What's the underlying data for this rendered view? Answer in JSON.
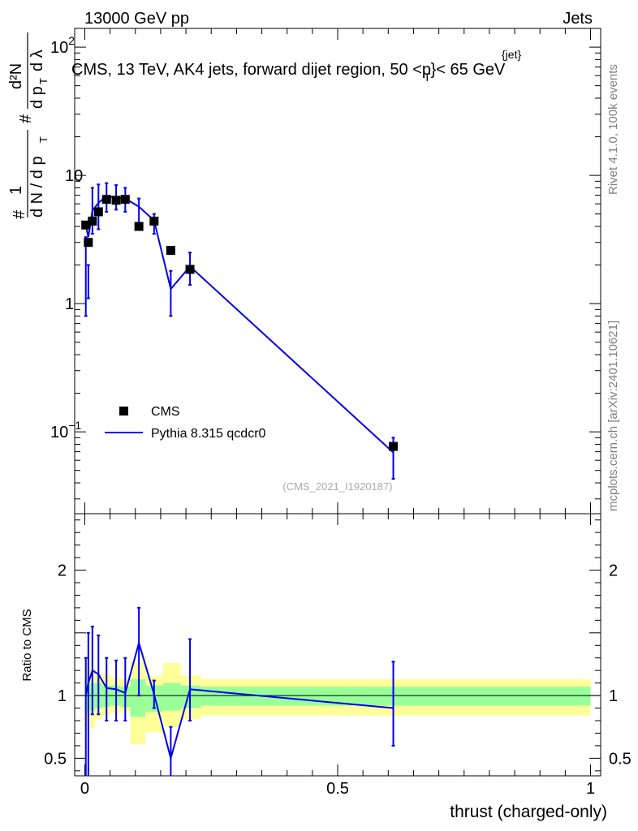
{
  "header": {
    "left": "13000 GeV pp",
    "right": "Jets",
    "title": "CMS, 13 TeV, AK4 jets, forward dijet region, 50 <p",
    "title_sup": "{jet}",
    "title_sub": "T",
    "title_end": "}< 65 GeV"
  },
  "side": {
    "rivet": "Rivet 4.1.0,  100k events",
    "mcplots": "mcplots.cern.ch [arXiv:2401.10621]"
  },
  "watermark": "(CMS_2021_I1920187)",
  "legend": {
    "data": "CMS",
    "mc": "Pythia 8.315 qcdcr0"
  },
  "colors": {
    "data": "#000000",
    "mc": "#0000ee",
    "band_inner": "#99ff99",
    "band_outer": "#ffff99"
  },
  "axes": {
    "ylabel_main": "1/(dN/dpT) d²N/(dpT dλ)",
    "ylabel_ratio": "Ratio to CMS",
    "xlabel": "thrust (charged-only)",
    "main_ticks": [
      {
        "v": 0.1,
        "label": "10",
        "exp": "−1"
      },
      {
        "v": 1,
        "label": "1",
        "exp": ""
      },
      {
        "v": 10,
        "label": "10",
        "exp": ""
      },
      {
        "v": 100,
        "label": "10",
        "exp": "2"
      }
    ],
    "ratio_ticks": [
      {
        "v": 0.5,
        "label": "0.5"
      },
      {
        "v": 1,
        "label": "1"
      },
      {
        "v": 2,
        "label": "2"
      }
    ],
    "x_ticks": [
      {
        "v": 0,
        "label": "0"
      },
      {
        "v": 0.5,
        "label": "0.5"
      },
      {
        "v": 1,
        "label": "1"
      }
    ]
  },
  "chart_data": {
    "type": "scatter",
    "title": "CMS, 13 TeV, AK4 jets, forward dijet region, 50 < pT < 65 GeV",
    "xlabel": "thrust (charged-only)",
    "ylabel": "1/(dN/dpT) d²N/(dpT dλ)",
    "yscale": "log",
    "xlim": [
      -0.02,
      1.02
    ],
    "ylim": [
      0.023,
      140
    ],
    "ratio_ylim": [
      0.36,
      2.45
    ],
    "series": [
      {
        "name": "CMS",
        "x": [
          0.002,
          0.007,
          0.015,
          0.027,
          0.043,
          0.062,
          0.08,
          0.107,
          0.137,
          0.17,
          0.208,
          0.61
        ],
        "y": [
          4.1,
          3.0,
          4.4,
          5.2,
          6.5,
          6.4,
          6.5,
          4.0,
          4.4,
          2.6,
          1.85,
          0.077
        ],
        "bins": [
          [
            0.0,
            0.004
          ],
          [
            0.004,
            0.01
          ],
          [
            0.01,
            0.02
          ],
          [
            0.02,
            0.035
          ],
          [
            0.035,
            0.05
          ],
          [
            0.05,
            0.07
          ],
          [
            0.07,
            0.09
          ],
          [
            0.09,
            0.12
          ],
          [
            0.12,
            0.155
          ],
          [
            0.155,
            0.19
          ],
          [
            0.19,
            0.23
          ],
          [
            0.23,
            1.0
          ]
        ],
        "band_outer": [
          [
            0.81,
            1.32
          ],
          [
            0.77,
            1.26
          ],
          [
            0.74,
            1.21
          ],
          [
            0.81,
            1.18
          ],
          [
            0.84,
            1.17
          ],
          [
            0.86,
            1.15
          ],
          [
            0.87,
            1.13
          ],
          [
            0.61,
            1.26
          ],
          [
            0.71,
            1.16
          ],
          [
            0.75,
            1.26
          ],
          [
            0.81,
            1.16
          ],
          [
            0.84,
            1.13
          ]
        ],
        "band_inner": [
          [
            0.89,
            1.14
          ],
          [
            0.86,
            1.12
          ],
          [
            0.88,
            1.1
          ],
          [
            0.9,
            1.1
          ],
          [
            0.91,
            1.08
          ],
          [
            0.92,
            1.08
          ],
          [
            0.91,
            1.07
          ],
          [
            0.83,
            1.13
          ],
          [
            0.87,
            1.08
          ],
          [
            0.88,
            1.1
          ],
          [
            0.9,
            1.08
          ],
          [
            0.92,
            1.07
          ]
        ]
      },
      {
        "name": "Pythia 8.315 qcdcr0",
        "x": [
          0.002,
          0.007,
          0.015,
          0.027,
          0.043,
          0.062,
          0.08,
          0.107,
          0.137,
          0.17,
          0.208,
          0.61
        ],
        "y": [
          4.1,
          3.3,
          5.3,
          6.1,
          6.9,
          6.7,
          6.6,
          5.7,
          4.45,
          1.3,
          1.95,
          0.069
        ],
        "yerr": [
          [
            0.8,
            3.3
          ],
          [
            1.1,
            2.0
          ],
          [
            3.5,
            8.0
          ],
          [
            3.8,
            8.5
          ],
          [
            5.2,
            8.7
          ],
          [
            5.4,
            8.4
          ],
          [
            5.2,
            8.0
          ],
          [
            4.2,
            6.6
          ],
          [
            3.5,
            5.0
          ],
          [
            0.8,
            1.8
          ],
          [
            1.4,
            2.5
          ],
          [
            0.043,
            0.09
          ]
        ],
        "ratio": [
          1.0,
          1.1,
          1.2,
          1.17,
          1.06,
          1.05,
          1.02,
          1.42,
          1.01,
          0.5,
          1.05,
          0.9
        ],
        "ratio_err": [
          [
            0.3,
            1.3
          ],
          [
            0.3,
            1.5
          ],
          [
            0.85,
            1.55
          ],
          [
            0.85,
            1.48
          ],
          [
            0.8,
            1.3
          ],
          [
            0.8,
            1.28
          ],
          [
            0.8,
            1.3
          ],
          [
            1.0,
            1.7
          ],
          [
            0.9,
            1.12
          ],
          [
            0.3,
            0.75
          ],
          [
            0.8,
            1.45
          ],
          [
            0.6,
            1.27
          ]
        ]
      }
    ]
  }
}
